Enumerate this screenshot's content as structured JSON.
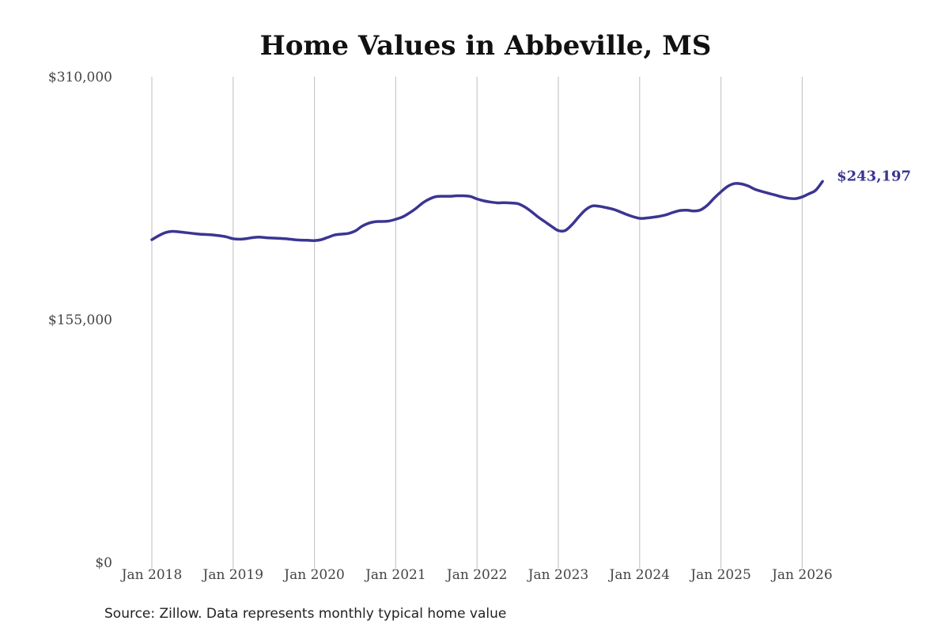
{
  "chart_data": {
    "type": "line",
    "title": "Home Values in Abbeville, MS",
    "source": "Source: Zillow. Data represents monthly typical home value",
    "ylim": [
      0,
      310000
    ],
    "y_ticks": [
      "$0",
      "$155,000",
      "$310,000"
    ],
    "y_tick_values": [
      0,
      155000,
      310000
    ],
    "x_ticks": [
      "Jan 2018",
      "Jan 2019",
      "Jan 2020",
      "Jan 2021",
      "Jan 2022",
      "Jan 2023",
      "Jan 2024",
      "Jan 2025",
      "Jan 2026"
    ],
    "x_range": [
      "2018-01",
      "2026-04"
    ],
    "grid": "vertical",
    "line_color": "#3b3591",
    "end_label": "$243,197",
    "series": [
      {
        "points": [
          [
            "2018-01",
            206000
          ],
          [
            "2018-02",
            208500
          ],
          [
            "2018-03",
            210500
          ],
          [
            "2018-04",
            211300
          ],
          [
            "2018-05",
            211000
          ],
          [
            "2018-06",
            210500
          ],
          [
            "2018-07",
            210000
          ],
          [
            "2018-08",
            209500
          ],
          [
            "2018-09",
            209300
          ],
          [
            "2018-10",
            209000
          ],
          [
            "2018-11",
            208500
          ],
          [
            "2018-12",
            207800
          ],
          [
            "2019-01",
            206600
          ],
          [
            "2019-02",
            206300
          ],
          [
            "2019-03",
            206700
          ],
          [
            "2019-04",
            207400
          ],
          [
            "2019-05",
            207600
          ],
          [
            "2019-06",
            207200
          ],
          [
            "2019-07",
            207000
          ],
          [
            "2019-08",
            206800
          ],
          [
            "2019-09",
            206500
          ],
          [
            "2019-10",
            206000
          ],
          [
            "2019-11",
            205700
          ],
          [
            "2019-12",
            205600
          ],
          [
            "2020-01",
            205400
          ],
          [
            "2020-02",
            206000
          ],
          [
            "2020-03",
            207500
          ],
          [
            "2020-04",
            209000
          ],
          [
            "2020-05",
            209500
          ],
          [
            "2020-06",
            210000
          ],
          [
            "2020-07",
            211500
          ],
          [
            "2020-08",
            214500
          ],
          [
            "2020-09",
            216500
          ],
          [
            "2020-10",
            217500
          ],
          [
            "2020-11",
            217600
          ],
          [
            "2020-12",
            217900
          ],
          [
            "2021-01",
            219000
          ],
          [
            "2021-02",
            220500
          ],
          [
            "2021-03",
            223000
          ],
          [
            "2021-04",
            226000
          ],
          [
            "2021-05",
            229500
          ],
          [
            "2021-06",
            232000
          ],
          [
            "2021-07",
            233500
          ],
          [
            "2021-08",
            233700
          ],
          [
            "2021-09",
            233700
          ],
          [
            "2021-10",
            234000
          ],
          [
            "2021-11",
            234000
          ],
          [
            "2021-12",
            233600
          ],
          [
            "2022-01",
            232000
          ],
          [
            "2022-02",
            230800
          ],
          [
            "2022-03",
            230000
          ],
          [
            "2022-04",
            229500
          ],
          [
            "2022-05",
            229600
          ],
          [
            "2022-06",
            229400
          ],
          [
            "2022-07",
            229000
          ],
          [
            "2022-08",
            227000
          ],
          [
            "2022-09",
            224000
          ],
          [
            "2022-10",
            220500
          ],
          [
            "2022-11",
            217500
          ],
          [
            "2022-12",
            214500
          ],
          [
            "2023-01",
            211800
          ],
          [
            "2023-02",
            211800
          ],
          [
            "2023-03",
            215500
          ],
          [
            "2023-04",
            220500
          ],
          [
            "2023-05",
            225000
          ],
          [
            "2023-06",
            227500
          ],
          [
            "2023-07",
            227300
          ],
          [
            "2023-08",
            226500
          ],
          [
            "2023-09",
            225500
          ],
          [
            "2023-10",
            224000
          ],
          [
            "2023-11",
            222200
          ],
          [
            "2023-12",
            220700
          ],
          [
            "2024-01",
            219600
          ],
          [
            "2024-02",
            219800
          ],
          [
            "2024-03",
            220300
          ],
          [
            "2024-04",
            221000
          ],
          [
            "2024-05",
            222000
          ],
          [
            "2024-06",
            223500
          ],
          [
            "2024-07",
            224600
          ],
          [
            "2024-08",
            224800
          ],
          [
            "2024-09",
            224300
          ],
          [
            "2024-10",
            225000
          ],
          [
            "2024-11",
            228000
          ],
          [
            "2024-12",
            232500
          ],
          [
            "2025-01",
            236500
          ],
          [
            "2025-02",
            240000
          ],
          [
            "2025-03",
            241800
          ],
          [
            "2025-04",
            241600
          ],
          [
            "2025-05",
            240300
          ],
          [
            "2025-06",
            238200
          ],
          [
            "2025-07",
            236800
          ],
          [
            "2025-08",
            235600
          ],
          [
            "2025-09",
            234500
          ],
          [
            "2025-10",
            233300
          ],
          [
            "2025-11",
            232400
          ],
          [
            "2025-12",
            232200
          ],
          [
            "2026-01",
            233300
          ],
          [
            "2026-02",
            235300
          ],
          [
            "2026-03",
            237600
          ],
          [
            "2026-04",
            243197
          ]
        ]
      }
    ]
  }
}
